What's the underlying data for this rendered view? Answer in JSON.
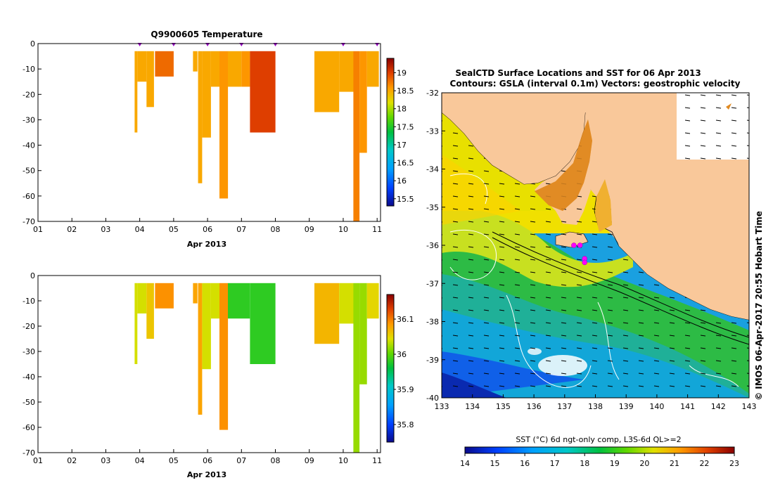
{
  "top_chart": {
    "title": "Q9900605  Temperature",
    "xlabel": "Apr 2013",
    "x_ticks": [
      "01",
      "02",
      "03",
      "04",
      "05",
      "06",
      "07",
      "08",
      "09",
      "10",
      "11"
    ],
    "y_ticks": [
      "0",
      "-10",
      "-20",
      "-30",
      "-40",
      "-50",
      "-60",
      "-70"
    ],
    "colorbar_ticks": [
      "15.5",
      "16",
      "16.5",
      "17",
      "17.5",
      "18",
      "18.5",
      "19"
    ]
  },
  "bottom_chart": {
    "title": "",
    "xlabel": "Apr 2013",
    "x_ticks": [
      "01",
      "02",
      "03",
      "04",
      "05",
      "06",
      "07",
      "08",
      "09",
      "10",
      "11"
    ],
    "y_ticks": [
      "0",
      "-10",
      "-20",
      "-30",
      "-40",
      "-50",
      "-60",
      "-70"
    ],
    "colorbar_ticks": [
      "35.8",
      "35.9",
      "36",
      "36.1"
    ]
  },
  "map": {
    "title_line1": "SealCTD Surface Locations and SST for 06 Apr 2013",
    "title_line2": "Contours: GSLA (interval 0.1m) Vectors: geostrophic velocity",
    "lon_ticks": [
      "133",
      "134",
      "135",
      "136",
      "137",
      "138",
      "139",
      "140",
      "141",
      "142",
      "143"
    ],
    "lat_ticks": [
      "-32",
      "-33",
      "-34",
      "-35",
      "-36",
      "-37",
      "-38",
      "-39",
      "-40"
    ],
    "colorbar_label": "SST (°C) 6d ngt-only comp, L3S-6d QL>=2",
    "colorbar_ticks": [
      "14",
      "15",
      "16",
      "17",
      "18",
      "19",
      "20",
      "21",
      "22",
      "23"
    ],
    "credit": "© IMOS 06-Apr-2017 20:55 Hobart Time"
  },
  "chart_data": [
    {
      "type": "heatmap",
      "title": "Q9900605  Temperature",
      "xlabel": "Apr 2013",
      "ylabel": "",
      "xlim": [
        1,
        11.1
      ],
      "ylim": [
        -70,
        0
      ],
      "colorbar_range": [
        15.3,
        19.4
      ],
      "profiles": [
        {
          "x0": 3.85,
          "x1": 3.93,
          "z": 18.5,
          "bottom": -35
        },
        {
          "x0": 3.93,
          "x1": 4.2,
          "z": 18.5,
          "bottom": -15
        },
        {
          "x0": 4.2,
          "x1": 4.42,
          "z": 18.5,
          "bottom": -25
        },
        {
          "x0": 4.45,
          "x1": 5.0,
          "z": 18.8,
          "bottom": -13
        },
        {
          "x0": 5.57,
          "x1": 5.7,
          "z": 18.5,
          "bottom": -11
        },
        {
          "x0": 5.72,
          "x1": 5.84,
          "z": 18.5,
          "bottom": -55
        },
        {
          "x0": 5.84,
          "x1": 6.1,
          "z": 18.5,
          "bottom": -37
        },
        {
          "x0": 6.1,
          "x1": 6.35,
          "z": 18.5,
          "bottom": -17
        },
        {
          "x0": 6.35,
          "x1": 6.6,
          "z": 18.6,
          "bottom": -61
        },
        {
          "x0": 6.6,
          "x1": 7.0,
          "z": 18.5,
          "bottom": -17
        },
        {
          "x0": 7.0,
          "x1": 7.25,
          "z": 18.6,
          "bottom": -17
        },
        {
          "x0": 7.25,
          "x1": 8.0,
          "z": 19.0,
          "bottom": -35
        },
        {
          "x0": 9.15,
          "x1": 9.88,
          "z": 18.5,
          "bottom": -27
        },
        {
          "x0": 9.88,
          "x1": 10.3,
          "z": 18.5,
          "bottom": -19
        },
        {
          "x0": 10.3,
          "x1": 10.48,
          "z": 18.7,
          "bottom": -70
        },
        {
          "x0": 10.48,
          "x1": 10.7,
          "z": 18.6,
          "bottom": -43
        },
        {
          "x0": 10.7,
          "x1": 11.05,
          "z": 18.5,
          "bottom": -17
        }
      ],
      "cast_markers": [
        4.0,
        5.0,
        6.0,
        7.0,
        8.0,
        10.0,
        11.0
      ]
    },
    {
      "type": "heatmap",
      "title": "",
      "xlabel": "Apr 2013",
      "ylabel": "",
      "xlim": [
        1,
        11.1
      ],
      "ylim": [
        -70,
        0
      ],
      "colorbar_range": [
        35.75,
        36.17
      ],
      "profiles": [
        {
          "x0": 3.85,
          "x1": 3.93,
          "z": 36.04,
          "bottom": -35
        },
        {
          "x0": 3.93,
          "x1": 4.2,
          "z": 36.04,
          "bottom": -15
        },
        {
          "x0": 4.2,
          "x1": 4.42,
          "z": 36.06,
          "bottom": -25
        },
        {
          "x0": 4.45,
          "x1": 5.0,
          "z": 36.09,
          "bottom": -13
        },
        {
          "x0": 5.57,
          "x1": 5.7,
          "z": 36.08,
          "bottom": -11
        },
        {
          "x0": 5.72,
          "x1": 5.84,
          "z": 36.08,
          "bottom": -55
        },
        {
          "x0": 5.84,
          "x1": 6.1,
          "z": 36.04,
          "bottom": -37
        },
        {
          "x0": 6.1,
          "x1": 6.35,
          "z": 36.04,
          "bottom": -17
        },
        {
          "x0": 6.35,
          "x1": 6.6,
          "z": 36.09,
          "bottom": -61
        },
        {
          "x0": 6.6,
          "x1": 7.25,
          "z": 35.98,
          "bottom": -17
        },
        {
          "x0": 7.25,
          "x1": 8.0,
          "z": 35.98,
          "bottom": -35
        },
        {
          "x0": 9.15,
          "x1": 9.88,
          "z": 36.07,
          "bottom": -27
        },
        {
          "x0": 9.88,
          "x1": 10.3,
          "z": 36.04,
          "bottom": -19
        },
        {
          "x0": 10.3,
          "x1": 10.48,
          "z": 36.02,
          "bottom": -70
        },
        {
          "x0": 10.48,
          "x1": 10.7,
          "z": 36.02,
          "bottom": -43
        },
        {
          "x0": 10.7,
          "x1": 11.05,
          "z": 36.05,
          "bottom": -17
        }
      ]
    },
    {
      "type": "heatmap",
      "title": "SealCTD Surface Locations and SST for 06 Apr 2013",
      "xlabel": "",
      "ylabel": "",
      "xlim": [
        133,
        143
      ],
      "ylim": [
        -40,
        -32
      ],
      "colorbar_range": [
        14,
        23
      ],
      "surface_locations": [
        {
          "lon": 137.3,
          "lat": -36.0
        },
        {
          "lon": 137.5,
          "lat": -36.0
        },
        {
          "lon": 137.65,
          "lat": -36.35
        },
        {
          "lon": 137.65,
          "lat": -36.45
        }
      ]
    }
  ]
}
